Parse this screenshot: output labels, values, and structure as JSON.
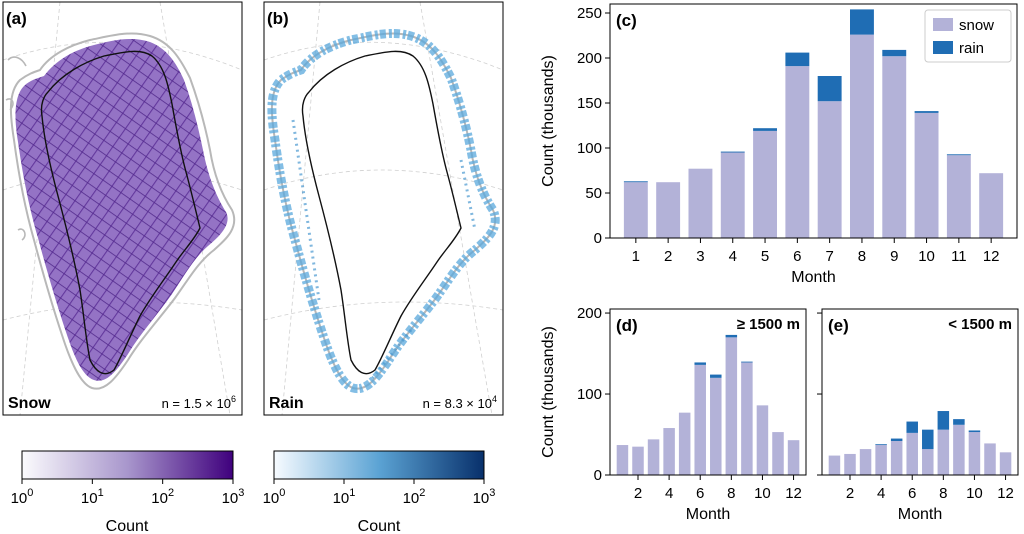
{
  "colors": {
    "snow": "#b3b2d8",
    "rain": "#1f6db4",
    "snow_map": "#5b2d98",
    "rain_map": "#3a8fcc",
    "coast": "#b8b8b8",
    "ice_margin": "#111111"
  },
  "maps": [
    {
      "panel_label": "(a)",
      "name": "Snow",
      "n_text": "n = 1.5 × 10",
      "n_exp": "6"
    },
    {
      "panel_label": "(b)",
      "name": "Rain",
      "n_text": "n = 8.3 × 10",
      "n_exp": "4"
    }
  ],
  "colorbars": [
    {
      "label": "Count",
      "ticks": [
        {
          "base": "10",
          "exp": "0"
        },
        {
          "base": "10",
          "exp": "1"
        },
        {
          "base": "10",
          "exp": "2"
        },
        {
          "base": "10",
          "exp": "3"
        }
      ],
      "scale": "log",
      "range": [
        1,
        1000
      ],
      "from": "#fbfbfd",
      "to": "#3f007d"
    },
    {
      "label": "Count",
      "ticks": [
        {
          "base": "10",
          "exp": "0"
        },
        {
          "base": "10",
          "exp": "1"
        },
        {
          "base": "10",
          "exp": "2"
        },
        {
          "base": "10",
          "exp": "3"
        }
      ],
      "scale": "log",
      "range": [
        1,
        1000
      ],
      "from": "#f7fbff",
      "to": "#08306b"
    }
  ],
  "chart_data": [
    {
      "panel_label": "(c)",
      "type": "bar",
      "stacked": true,
      "categories": [
        "1",
        "2",
        "3",
        "4",
        "5",
        "6",
        "7",
        "8",
        "9",
        "10",
        "11",
        "12"
      ],
      "series": [
        {
          "name": "snow",
          "values": [
            62,
            62,
            77,
            95,
            119,
            191,
            152,
            226,
            202,
            139,
            92,
            72
          ]
        },
        {
          "name": "rain",
          "values": [
            1,
            0,
            0,
            1,
            3,
            15,
            28,
            28,
            7,
            2,
            1,
            0
          ]
        }
      ],
      "xlabel": "Month",
      "ylabel": "Count (thousands)",
      "ylim": [
        0,
        260
      ],
      "yticks": [
        0,
        50,
        100,
        150,
        200,
        250
      ],
      "legend": "top-right"
    },
    {
      "panel_label": "(d)",
      "title": "≥ 1500 m",
      "type": "bar",
      "stacked": true,
      "categories": [
        "1",
        "2",
        "3",
        "4",
        "5",
        "6",
        "7",
        "8",
        "9",
        "10",
        "11",
        "12"
      ],
      "series": [
        {
          "name": "snow",
          "values": [
            37,
            35,
            44,
            58,
            77,
            136,
            120,
            170,
            139,
            86,
            53,
            43
          ]
        },
        {
          "name": "rain",
          "values": [
            0,
            0,
            0,
            0,
            0,
            3,
            4,
            3,
            1,
            0,
            0,
            0
          ]
        }
      ],
      "xlabel": "Month",
      "ylabel": "Count (thousands)",
      "ylim": [
        0,
        205
      ],
      "yticks": [
        0,
        100,
        200
      ],
      "xticks": [
        "2",
        "4",
        "6",
        "8",
        "10",
        "12"
      ]
    },
    {
      "panel_label": "(e)",
      "title": "< 1500 m",
      "type": "bar",
      "stacked": true,
      "categories": [
        "1",
        "2",
        "3",
        "4",
        "5",
        "6",
        "7",
        "8",
        "9",
        "10",
        "11",
        "12"
      ],
      "series": [
        {
          "name": "snow",
          "values": [
            24,
            26,
            32,
            37,
            42,
            52,
            32,
            56,
            62,
            53,
            39,
            28
          ]
        },
        {
          "name": "rain",
          "values": [
            0,
            0,
            0,
            1,
            3,
            14,
            24,
            23,
            7,
            2,
            0,
            0
          ]
        }
      ],
      "xlabel": "Month",
      "ylim": [
        0,
        205
      ],
      "xticks": [
        "2",
        "4",
        "6",
        "8",
        "10",
        "12"
      ]
    }
  ]
}
